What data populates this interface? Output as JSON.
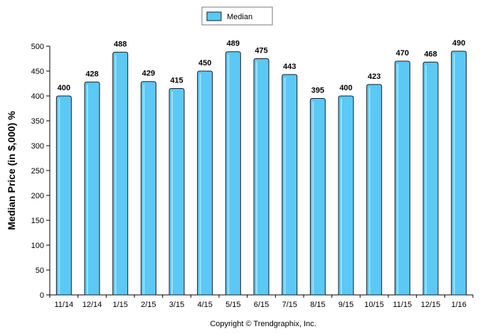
{
  "chart_data": {
    "type": "bar",
    "categories": [
      "11/14",
      "12/14",
      "1/15",
      "2/15",
      "3/15",
      "4/15",
      "5/15",
      "6/15",
      "7/15",
      "8/15",
      "9/15",
      "10/15",
      "11/15",
      "12/15",
      "1/16"
    ],
    "series": [
      {
        "name": "Median",
        "values": [
          400,
          428,
          488,
          429,
          415,
          450,
          489,
          475,
          443,
          395,
          400,
          423,
          470,
          468,
          490
        ]
      }
    ],
    "ylabel": "Median Price (in $,000) %",
    "xlabel": "",
    "ylim": [
      0,
      500
    ],
    "yticks": [
      0,
      50,
      100,
      150,
      200,
      250,
      300,
      350,
      400,
      450,
      500
    ],
    "legend": "top-center",
    "grid": false,
    "colors": {
      "bar_fill": "#5bc8f5",
      "bar_stroke": "#1c1c1c",
      "axis": "#000000"
    }
  },
  "copyright": "Copyright © Trendgraphix, Inc."
}
